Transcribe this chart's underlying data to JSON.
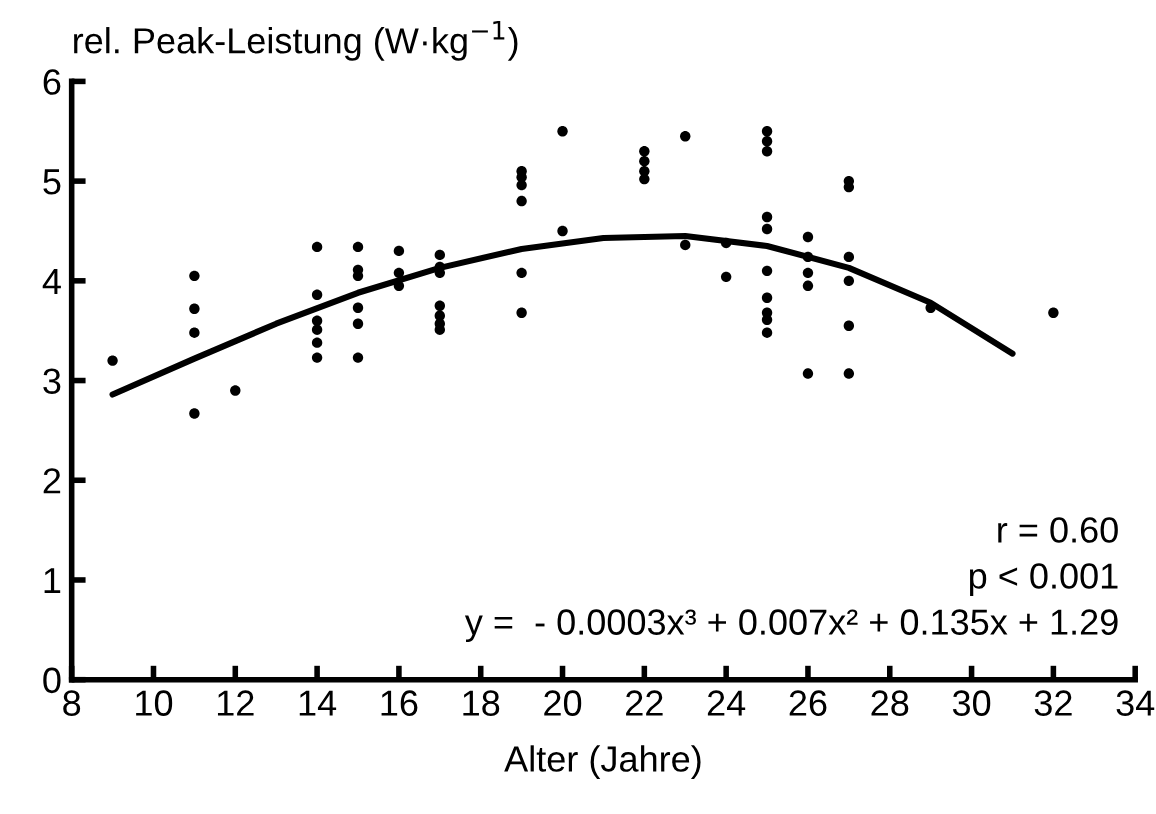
{
  "chart_data": {
    "type": "scatter",
    "xlabel": "Alter (Jahre)",
    "ylabel": "rel. Peak-Leistung (W·kg$^{−1}$)",
    "series": [
      {
        "color": "#000000",
        "marker": "circle",
        "x": [
          9,
          11,
          11,
          11,
          11,
          12,
          14,
          14,
          14,
          14,
          14,
          14,
          15,
          15,
          15,
          15,
          15,
          15,
          16,
          16,
          16,
          17,
          17,
          17,
          17,
          17,
          17,
          17,
          19,
          19,
          19,
          19,
          19,
          19,
          20,
          20,
          22,
          22,
          22,
          22,
          23,
          23,
          24,
          24,
          25,
          25,
          25,
          25,
          25,
          25,
          25,
          25,
          25,
          25,
          26,
          26,
          26,
          26,
          26,
          27,
          27,
          27,
          27,
          27,
          27,
          29,
          32
        ],
        "values": [
          3.2,
          4.05,
          3.72,
          3.48,
          2.67,
          2.9,
          4.34,
          3.86,
          3.6,
          3.51,
          3.38,
          3.23,
          4.34,
          4.11,
          4.05,
          3.73,
          3.57,
          3.23,
          4.3,
          4.08,
          3.95,
          4.26,
          4.14,
          4.08,
          3.75,
          3.65,
          3.57,
          3.51,
          5.1,
          5.04,
          4.96,
          4.8,
          4.08,
          3.68,
          5.5,
          4.5,
          5.3,
          5.2,
          5.1,
          5.02,
          5.45,
          4.36,
          4.38,
          4.04,
          5.5,
          5.4,
          5.3,
          4.64,
          4.52,
          4.1,
          3.83,
          3.68,
          3.61,
          3.48,
          4.44,
          4.24,
          4.08,
          3.95,
          3.07,
          5.0,
          4.94,
          4.24,
          4.0,
          3.55,
          3.07,
          3.73,
          3.68
        ]
      },
      {
        "type": "line",
        "color": "#000000",
        "marker": "none",
        "line_style": "solid",
        "x": [
          9,
          11,
          13,
          15,
          17,
          19,
          21,
          23,
          25,
          27,
          29,
          31
        ],
        "values": [
          2.86,
          3.22,
          3.57,
          3.88,
          4.13,
          4.32,
          4.43,
          4.45,
          4.35,
          4.13,
          3.78,
          3.27
        ]
      }
    ],
    "xlim": [
      8,
      34
    ],
    "xticks": [
      8,
      10,
      12,
      14,
      16,
      18,
      20,
      22,
      24,
      26,
      28,
      30,
      32,
      34
    ],
    "ylim": [
      0,
      6
    ],
    "yticks": [
      0,
      1,
      2,
      3,
      4,
      5,
      6
    ],
    "grid": false,
    "legend": false,
    "annotations": [
      "r = 0.60",
      "p < 0.001",
      "y =  - 0.0003x³ + 0.007x² + 0.135x + 1.29"
    ]
  }
}
